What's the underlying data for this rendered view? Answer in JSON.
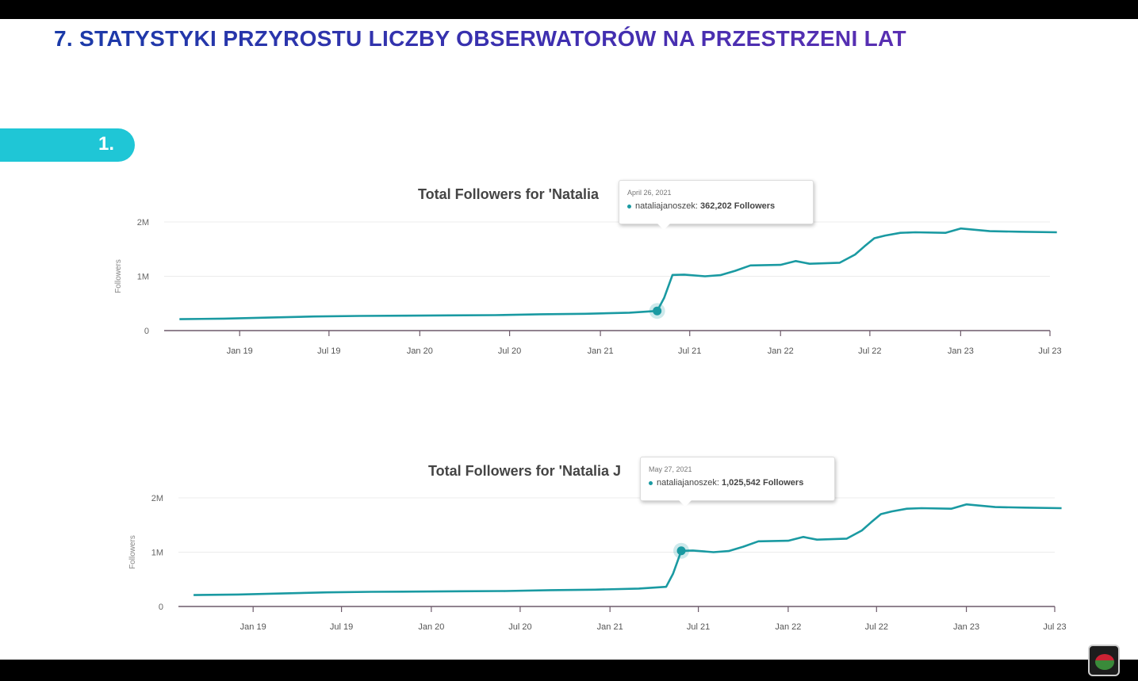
{
  "slide": {
    "title": "7. STATYSTYKI PRZYROSTU LICZBY OBSERWATORÓW NA PRZESTRZENI LAT",
    "section_number": "1."
  },
  "colors": {
    "line": "#1a9aa2",
    "title": "#1a3aa8",
    "pill": "#1fc6d6"
  },
  "chart_data": [
    {
      "type": "line",
      "title": "Total Followers for 'Natalia",
      "ylabel": "Followers",
      "y_ticks": [
        "0",
        "1M",
        "2M"
      ],
      "ylim": [
        0,
        2000000
      ],
      "x_ticks": [
        "Jan 19",
        "Jul 19",
        "Jan 20",
        "Jul 20",
        "Jan 21",
        "Jul 21",
        "Jan 22",
        "Jul 22",
        "Jan 23",
        "Jul 23"
      ],
      "series": [
        {
          "x": [
            "2018-09-01",
            "2018-12-01",
            "2019-03-01",
            "2019-06-01",
            "2019-09-01",
            "2019-12-01",
            "2020-03-01",
            "2020-06-01",
            "2020-09-01",
            "2020-12-01",
            "2021-03-01",
            "2021-04-26",
            "2021-05-10",
            "2021-05-27",
            "2021-06-20",
            "2021-08-01",
            "2021-09-01",
            "2021-10-01",
            "2021-11-01",
            "2022-01-01",
            "2022-02-01",
            "2022-03-01",
            "2022-05-01",
            "2022-06-01",
            "2022-06-20",
            "2022-07-10",
            "2022-08-01",
            "2022-09-01",
            "2022-10-01",
            "2022-12-01",
            "2023-01-01",
            "2023-03-01",
            "2023-05-01",
            "2023-07-15"
          ],
          "values": [
            210000,
            220000,
            240000,
            260000,
            270000,
            275000,
            280000,
            285000,
            300000,
            310000,
            330000,
            362202,
            600000,
            1025542,
            1030000,
            1000000,
            1020000,
            1100000,
            1200000,
            1210000,
            1280000,
            1230000,
            1250000,
            1400000,
            1550000,
            1700000,
            1750000,
            1800000,
            1810000,
            1800000,
            1880000,
            1830000,
            1820000,
            1810000
          ]
        }
      ],
      "tooltip": {
        "date": "April 26, 2021",
        "series": "nataliajanoszek",
        "value": "362,202",
        "suffix": "Followers"
      }
    },
    {
      "type": "line",
      "title": "Total Followers for 'Natalia J",
      "ylabel": "Followers",
      "y_ticks": [
        "0",
        "1M",
        "2M"
      ],
      "ylim": [
        0,
        2000000
      ],
      "x_ticks": [
        "Jan 19",
        "Jul 19",
        "Jan 20",
        "Jul 20",
        "Jan 21",
        "Jul 21",
        "Jan 22",
        "Jul 22",
        "Jan 23",
        "Jul 23"
      ],
      "series": [
        {
          "x": [
            "2018-09-01",
            "2018-12-01",
            "2019-03-01",
            "2019-06-01",
            "2019-09-01",
            "2019-12-01",
            "2020-03-01",
            "2020-06-01",
            "2020-09-01",
            "2020-12-01",
            "2021-03-01",
            "2021-04-26",
            "2021-05-10",
            "2021-05-27",
            "2021-06-20",
            "2021-08-01",
            "2021-09-01",
            "2021-10-01",
            "2021-11-01",
            "2022-01-01",
            "2022-02-01",
            "2022-03-01",
            "2022-05-01",
            "2022-06-01",
            "2022-06-20",
            "2022-07-10",
            "2022-08-01",
            "2022-09-01",
            "2022-10-01",
            "2022-12-01",
            "2023-01-01",
            "2023-03-01",
            "2023-05-01",
            "2023-07-15"
          ],
          "values": [
            210000,
            220000,
            240000,
            260000,
            270000,
            275000,
            280000,
            285000,
            300000,
            310000,
            330000,
            362202,
            600000,
            1025542,
            1030000,
            1000000,
            1020000,
            1100000,
            1200000,
            1210000,
            1280000,
            1230000,
            1250000,
            1400000,
            1550000,
            1700000,
            1750000,
            1800000,
            1810000,
            1800000,
            1880000,
            1830000,
            1820000,
            1810000
          ]
        }
      ],
      "tooltip": {
        "date": "May 27, 2021",
        "series": "nataliajanoszek",
        "value": "1,025,542",
        "suffix": "Followers"
      }
    }
  ]
}
